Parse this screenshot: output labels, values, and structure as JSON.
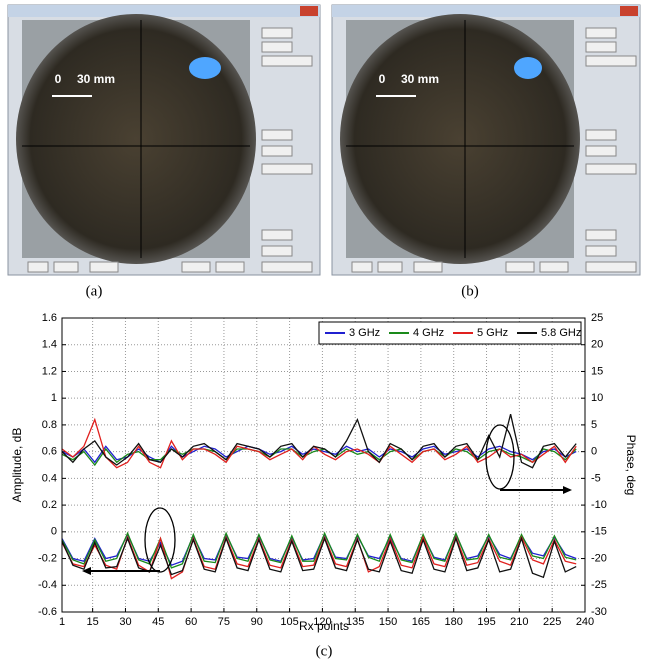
{
  "panels": [
    {
      "label": "(a)",
      "scale_start": "0",
      "scale_label": "30 mm"
    },
    {
      "label": "(b)",
      "scale_start": "0",
      "scale_label": "30 mm"
    }
  ],
  "chart_data": {
    "type": "line",
    "label": "(c)",
    "xlabel": "Rx points",
    "ylabel": "Amplitude, dB",
    "y2label": "Phase, deg",
    "x": [
      1,
      6,
      11,
      16,
      21,
      26,
      31,
      36,
      41,
      46,
      51,
      56,
      61,
      66,
      71,
      76,
      81,
      86,
      91,
      96,
      101,
      106,
      111,
      116,
      121,
      126,
      131,
      136,
      141,
      146,
      151,
      156,
      161,
      166,
      171,
      176,
      181,
      186,
      191,
      196,
      201,
      206,
      211,
      216,
      221,
      226,
      231,
      236
    ],
    "xlim": [
      1,
      240
    ],
    "xticks": [
      1,
      15,
      30,
      45,
      60,
      75,
      90,
      105,
      120,
      135,
      150,
      165,
      180,
      195,
      210,
      225,
      240
    ],
    "ylim": [
      -0.6,
      1.6
    ],
    "yticks": [
      -0.6,
      -0.4,
      -0.2,
      0,
      0.2,
      0.4,
      0.6,
      0.8,
      1,
      1.2,
      1.4,
      1.6
    ],
    "y2lim": [
      -30,
      25
    ],
    "y2ticks": [
      -30,
      -25,
      -20,
      -15,
      -10,
      -5,
      0,
      5,
      10,
      15,
      20,
      25
    ],
    "grid": true,
    "legend": "upper right",
    "series": [
      {
        "name": "3 GHz",
        "color": "#2020d0",
        "values": [
          -0.05,
          -0.2,
          -0.22,
          -0.05,
          -0.2,
          -0.18,
          -0.02,
          -0.2,
          -0.22,
          -0.08,
          -0.25,
          -0.22,
          -0.03,
          -0.2,
          -0.21,
          -0.02,
          -0.19,
          -0.2,
          -0.03,
          -0.2,
          -0.22,
          -0.04,
          -0.21,
          -0.2,
          -0.02,
          -0.19,
          -0.2,
          -0.03,
          -0.18,
          -0.2,
          -0.04,
          -0.2,
          -0.22,
          -0.03,
          -0.19,
          -0.21,
          -0.02,
          -0.2,
          -0.18,
          -0.03,
          -0.17,
          -0.2,
          -0.03,
          -0.16,
          -0.18,
          -0.04,
          -0.17,
          -0.2
        ]
      },
      {
        "name": "4 GHz",
        "color": "#1a8a1a",
        "values": [
          -0.06,
          -0.21,
          -0.24,
          -0.06,
          -0.22,
          -0.2,
          -0.01,
          -0.21,
          -0.24,
          -0.05,
          -0.27,
          -0.24,
          -0.02,
          -0.22,
          -0.23,
          -0.01,
          -0.2,
          -0.22,
          -0.02,
          -0.21,
          -0.23,
          -0.03,
          -0.22,
          -0.22,
          -0.01,
          -0.2,
          -0.21,
          -0.02,
          -0.19,
          -0.22,
          -0.02,
          -0.21,
          -0.23,
          -0.02,
          -0.2,
          -0.22,
          -0.01,
          -0.21,
          -0.2,
          -0.02,
          -0.19,
          -0.21,
          -0.02,
          -0.18,
          -0.2,
          -0.03,
          -0.19,
          -0.21
        ]
      },
      {
        "name": "5 GHz",
        "color": "#e0201e",
        "values": [
          -0.08,
          -0.24,
          -0.26,
          -0.1,
          -0.25,
          -0.28,
          -0.04,
          -0.25,
          -0.3,
          -0.05,
          -0.35,
          -0.3,
          -0.05,
          -0.26,
          -0.28,
          -0.04,
          -0.24,
          -0.26,
          -0.05,
          -0.25,
          -0.27,
          -0.06,
          -0.26,
          -0.25,
          -0.04,
          -0.24,
          -0.26,
          -0.05,
          -0.3,
          -0.26,
          -0.05,
          -0.25,
          -0.27,
          -0.04,
          -0.24,
          -0.26,
          -0.04,
          -0.25,
          -0.23,
          -0.05,
          -0.22,
          -0.25,
          -0.04,
          -0.21,
          -0.24,
          -0.06,
          -0.22,
          -0.24
        ]
      },
      {
        "name": "5.8 GHz",
        "color": "#111111",
        "values": [
          -0.07,
          -0.25,
          -0.28,
          -0.08,
          -0.27,
          -0.26,
          -0.05,
          -0.27,
          -0.3,
          -0.1,
          -0.32,
          -0.29,
          -0.06,
          -0.28,
          -0.3,
          -0.05,
          -0.27,
          -0.29,
          -0.06,
          -0.28,
          -0.3,
          -0.07,
          -0.29,
          -0.28,
          -0.05,
          -0.27,
          -0.29,
          -0.06,
          -0.28,
          -0.3,
          -0.07,
          -0.29,
          -0.31,
          -0.06,
          -0.28,
          -0.3,
          -0.05,
          -0.29,
          -0.27,
          -0.06,
          -0.3,
          -0.28,
          -0.05,
          -0.31,
          -0.34,
          -0.07,
          -0.3,
          -0.26
        ]
      },
      {
        "name": "3 GHz",
        "color": "#2020d0",
        "axis": "y2",
        "values": [
          0,
          -1,
          0.5,
          -2,
          1,
          -1.5,
          -1,
          0.5,
          -1,
          -2,
          1,
          -1,
          0,
          1,
          0.5,
          -1,
          0,
          1,
          0.5,
          -0.5,
          0,
          1,
          -0.5,
          0.5,
          0,
          -0.5,
          1,
          0,
          0.5,
          -1,
          0.5,
          0,
          -1,
          0.5,
          1,
          -0.5,
          0,
          0.5,
          -1,
          0.5,
          1,
          0,
          -0.5,
          -1.5,
          0,
          0.5,
          -1,
          0
        ]
      },
      {
        "name": "4 GHz",
        "color": "#1a8a1a",
        "axis": "y2",
        "values": [
          -0.5,
          -1.5,
          0,
          -2.5,
          0.5,
          -2,
          -0.5,
          0,
          -1.5,
          -1.5,
          0.5,
          -0.5,
          0.5,
          0.5,
          0,
          -1.5,
          0.5,
          0.5,
          0,
          -1,
          0.5,
          0.5,
          -1,
          0,
          0.5,
          -1,
          0.5,
          -0.5,
          0,
          -1.5,
          0,
          0.5,
          -1.5,
          0,
          0.5,
          -1,
          0.5,
          0,
          -1.5,
          0,
          0.5,
          -0.5,
          -1,
          -2,
          0.5,
          0,
          -1.5,
          0.5
        ]
      },
      {
        "name": "5 GHz",
        "color": "#e0201e",
        "axis": "y2",
        "values": [
          0.5,
          -1,
          1,
          6,
          -1,
          -3,
          -2,
          1,
          -2,
          -3,
          2,
          -1.5,
          0.5,
          0.5,
          -0.5,
          -2,
          1,
          0.5,
          0,
          -1.5,
          -0.5,
          0.5,
          -1.5,
          1,
          -0.5,
          -1.5,
          0,
          0.5,
          -0.5,
          -2,
          1,
          -0.5,
          -2,
          0,
          0.5,
          -1.5,
          -0.5,
          1,
          -2,
          -1,
          0.5,
          -1,
          -0.5,
          -2,
          -0.5,
          1,
          -2,
          1
        ]
      },
      {
        "name": "5.8 GHz",
        "color": "#111111",
        "axis": "y2",
        "values": [
          0,
          -2,
          0.5,
          2,
          -1,
          -2.5,
          -1,
          1.5,
          -1.5,
          -2,
          0.5,
          -1,
          1,
          1.5,
          0,
          -1.5,
          1.5,
          1,
          0.5,
          -1,
          1,
          1.5,
          -1,
          1,
          0.5,
          -1,
          2,
          6,
          0,
          -2,
          1.5,
          0.5,
          -1.5,
          1,
          1.5,
          -1,
          1,
          1.5,
          -1.5,
          3,
          -1,
          7,
          -2,
          -3,
          1,
          1.5,
          -1,
          1.5
        ]
      }
    ]
  }
}
